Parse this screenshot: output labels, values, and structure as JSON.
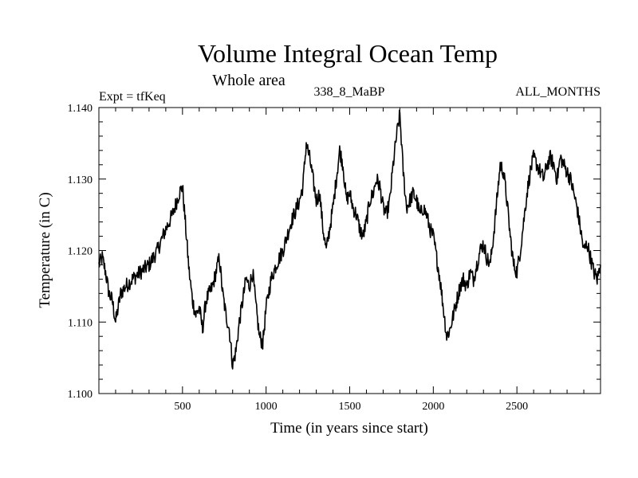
{
  "chart_data": {
    "type": "line",
    "title": "Volume Integral Ocean Temp",
    "subtitle": "Whole area",
    "expt_label": "Expt = tfKeq",
    "run_label": "338_8_MaBP",
    "period_label": "ALL_MONTHS",
    "xlabel": "Time (in years since start)",
    "ylabel": "Temperature (in C)",
    "xlim": [
      0,
      3000
    ],
    "ylim": [
      1.1,
      1.14
    ],
    "x_ticks": [
      500,
      1000,
      1500,
      2000,
      2500
    ],
    "x_tick_labels": [
      "500",
      "1000",
      "1500",
      "2000",
      "2500"
    ],
    "y_ticks": [
      1.1,
      1.11,
      1.12,
      1.13,
      1.14
    ],
    "y_tick_labels": [
      "1.100",
      "1.110",
      "1.120",
      "1.130",
      "1.140"
    ],
    "grid": false,
    "line_color": "#000000",
    "series": [
      {
        "x": [
          0,
          20,
          40,
          60,
          80,
          100,
          130,
          160,
          200,
          250,
          300,
          350,
          400,
          440,
          480,
          500,
          520,
          540,
          560,
          580,
          600,
          620,
          640,
          660,
          680,
          700,
          720,
          740,
          760,
          780,
          800,
          820,
          840,
          860,
          880,
          900,
          920,
          940,
          960,
          980,
          1000,
          1030,
          1060,
          1100,
          1150,
          1200,
          1220,
          1240,
          1260,
          1280,
          1300,
          1320,
          1340,
          1360,
          1380,
          1400,
          1420,
          1440,
          1460,
          1480,
          1500,
          1520,
          1540,
          1560,
          1580,
          1600,
          1620,
          1640,
          1660,
          1680,
          1700,
          1720,
          1740,
          1760,
          1780,
          1800,
          1820,
          1840,
          1860,
          1880,
          1900,
          1920,
          1940,
          1960,
          1980,
          2000,
          2020,
          2040,
          2060,
          2080,
          2100,
          2120,
          2140,
          2160,
          2180,
          2200,
          2220,
          2240,
          2260,
          2280,
          2300,
          2320,
          2340,
          2360,
          2380,
          2400,
          2420,
          2440,
          2460,
          2480,
          2500,
          2520,
          2540,
          2560,
          2580,
          2600,
          2620,
          2640,
          2660,
          2680,
          2700,
          2720,
          2740,
          2760,
          2780,
          2800,
          2820,
          2840,
          2860,
          2880,
          2900,
          2920,
          2940,
          2960,
          2980,
          3000
        ],
        "y": [
          1.118,
          1.119,
          1.117,
          1.114,
          1.113,
          1.11,
          1.114,
          1.115,
          1.116,
          1.117,
          1.118,
          1.12,
          1.123,
          1.125,
          1.128,
          1.129,
          1.123,
          1.117,
          1.113,
          1.111,
          1.112,
          1.109,
          1.113,
          1.114,
          1.115,
          1.117,
          1.119,
          1.114,
          1.111,
          1.109,
          1.104,
          1.106,
          1.11,
          1.113,
          1.116,
          1.115,
          1.117,
          1.112,
          1.108,
          1.107,
          1.112,
          1.116,
          1.118,
          1.12,
          1.124,
          1.127,
          1.129,
          1.135,
          1.133,
          1.13,
          1.127,
          1.128,
          1.123,
          1.12,
          1.123,
          1.126,
          1.13,
          1.134,
          1.132,
          1.127,
          1.128,
          1.126,
          1.125,
          1.123,
          1.122,
          1.124,
          1.127,
          1.128,
          1.13,
          1.129,
          1.126,
          1.125,
          1.127,
          1.132,
          1.136,
          1.139,
          1.131,
          1.126,
          1.127,
          1.128,
          1.127,
          1.125,
          1.126,
          1.125,
          1.123,
          1.122,
          1.119,
          1.116,
          1.112,
          1.108,
          1.109,
          1.111,
          1.113,
          1.115,
          1.116,
          1.115,
          1.117,
          1.116,
          1.118,
          1.12,
          1.121,
          1.119,
          1.118,
          1.122,
          1.127,
          1.132,
          1.131,
          1.127,
          1.122,
          1.118,
          1.117,
          1.12,
          1.124,
          1.128,
          1.131,
          1.133,
          1.132,
          1.131,
          1.13,
          1.132,
          1.133,
          1.132,
          1.13,
          1.133,
          1.132,
          1.131,
          1.13,
          1.128,
          1.126,
          1.123,
          1.12,
          1.121,
          1.119,
          1.117,
          1.116,
          1.118
        ]
      }
    ]
  }
}
